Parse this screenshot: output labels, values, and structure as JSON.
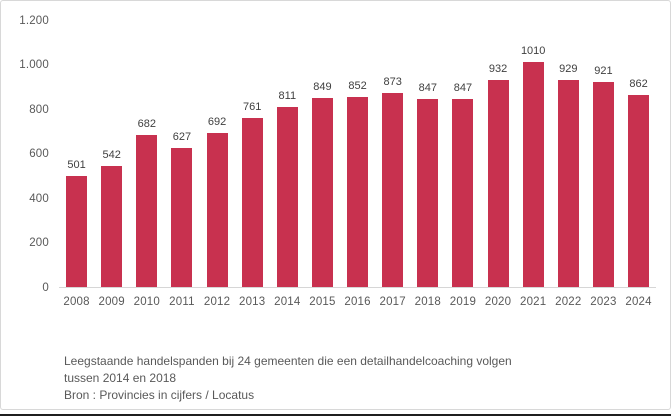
{
  "chart_data": {
    "type": "bar",
    "categories": [
      "2008",
      "2009",
      "2010",
      "2011",
      "2012",
      "2013",
      "2014",
      "2015",
      "2016",
      "2017",
      "2018",
      "2019",
      "2020",
      "2021",
      "2022",
      "2023",
      "2024"
    ],
    "values": [
      501,
      542,
      682,
      627,
      692,
      761,
      811,
      849,
      852,
      873,
      847,
      847,
      932,
      1010,
      929,
      921,
      862
    ],
    "title": "Leegstaande handelspanden bij 24 gemeenten die een detailhandelcoaching volgen tussen 2014 en 2018",
    "source": "Bron : Provincies in cijfers / Locatus",
    "xlabel": "",
    "ylabel": "",
    "ylim": [
      0,
      1200
    ],
    "y_ticks": [
      0,
      200,
      400,
      600,
      800,
      1000,
      1200
    ],
    "y_tick_labels": [
      "0",
      "200",
      "400",
      "600",
      "800",
      "1.000",
      "1.200"
    ],
    "grid": false,
    "legend": "none",
    "data_labels": true,
    "bar_color": "#c8314f",
    "value_label_color": "#404040",
    "axis_label_color": "#595959"
  },
  "caption": {
    "line1": "Leegstaande handelspanden bij 24 gemeenten die een detailhandelcoaching volgen",
    "line2": "tussen 2014 en 2018",
    "line3": "Bron : Provincies in cijfers / Locatus"
  }
}
